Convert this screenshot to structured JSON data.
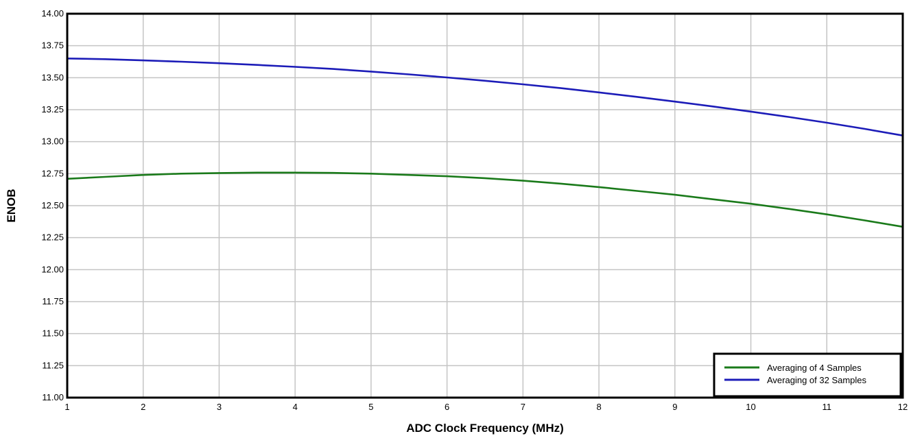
{
  "chart_data": {
    "type": "line",
    "title": "",
    "xlabel": "ADC Clock Frequency (MHz)",
    "ylabel": "ENOB",
    "xlim": [
      1,
      12
    ],
    "ylim": [
      11.0,
      14.0
    ],
    "x_ticks": [
      "1",
      "2",
      "3",
      "4",
      "5",
      "6",
      "7",
      "8",
      "9",
      "10",
      "11",
      "12"
    ],
    "y_ticks": [
      "11.00",
      "11.25",
      "11.50",
      "11.75",
      "12.00",
      "12.25",
      "12.50",
      "12.75",
      "13.00",
      "13.25",
      "13.50",
      "13.75",
      "14.00"
    ],
    "grid": true,
    "legend_position": "bottom-right",
    "x": [
      1,
      1.5,
      2,
      2.5,
      3,
      3.5,
      4,
      4.5,
      5,
      5.5,
      6,
      6.5,
      7,
      7.5,
      8,
      8.5,
      9,
      9.5,
      10,
      10.5,
      11,
      11.5,
      12
    ],
    "series": [
      {
        "name": "Averaging of 4 Samples",
        "color": "#1a7a1a",
        "values": [
          12.71,
          12.725,
          12.74,
          12.75,
          12.755,
          12.758,
          12.758,
          12.756,
          12.75,
          12.74,
          12.73,
          12.715,
          12.695,
          12.672,
          12.645,
          12.615,
          12.585,
          12.55,
          12.515,
          12.475,
          12.432,
          12.385,
          12.335
        ]
      },
      {
        "name": "Averaging of 32 Samples",
        "color": "#1c1cb8",
        "values": [
          13.65,
          13.645,
          13.635,
          13.625,
          13.613,
          13.6,
          13.585,
          13.568,
          13.548,
          13.526,
          13.502,
          13.476,
          13.448,
          13.418,
          13.385,
          13.35,
          13.313,
          13.275,
          13.235,
          13.193,
          13.148,
          13.1,
          13.048
        ]
      }
    ]
  }
}
